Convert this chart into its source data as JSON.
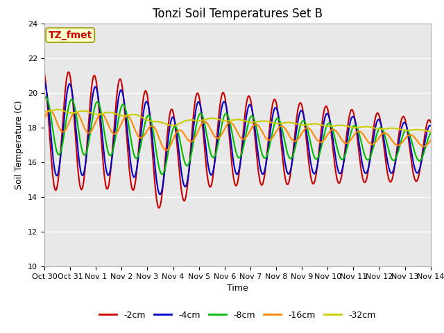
{
  "title": "Tonzi Soil Temperatures Set B",
  "xlabel": "Time",
  "ylabel": "Soil Temperature (C)",
  "ylim": [
    10,
    24
  ],
  "xlim": [
    0,
    15
  ],
  "xtick_labels": [
    "Oct 30",
    "Oct 31",
    "Nov 1",
    "Nov 2",
    "Nov 3",
    "Nov 4",
    "Nov 5",
    "Nov 6",
    "Nov 7",
    "Nov 8",
    "Nov 9",
    "Nov 10",
    "Nov 11",
    "Nov 12",
    "Nov 13",
    "Nov 14"
  ],
  "ytick_vals": [
    10,
    12,
    14,
    16,
    18,
    20,
    22,
    24
  ],
  "series": [
    {
      "label": "-2cm",
      "color": "#cc0000",
      "lw": 1.5
    },
    {
      "label": "-4cm",
      "color": "#0000cc",
      "lw": 1.5
    },
    {
      "label": "-8cm",
      "color": "#00bb00",
      "lw": 1.5
    },
    {
      "label": "-16cm",
      "color": "#ff8800",
      "lw": 1.5
    },
    {
      "label": "-32cm",
      "color": "#cccc00",
      "lw": 1.5
    }
  ],
  "annotation_text": "TZ_fmet",
  "annotation_color": "#cc0000",
  "annotation_bg": "#ffffcc",
  "plot_bg": "#e8e8e8",
  "title_fontsize": 12,
  "axis_fontsize": 9,
  "tick_fontsize": 8,
  "legend_fontsize": 9
}
